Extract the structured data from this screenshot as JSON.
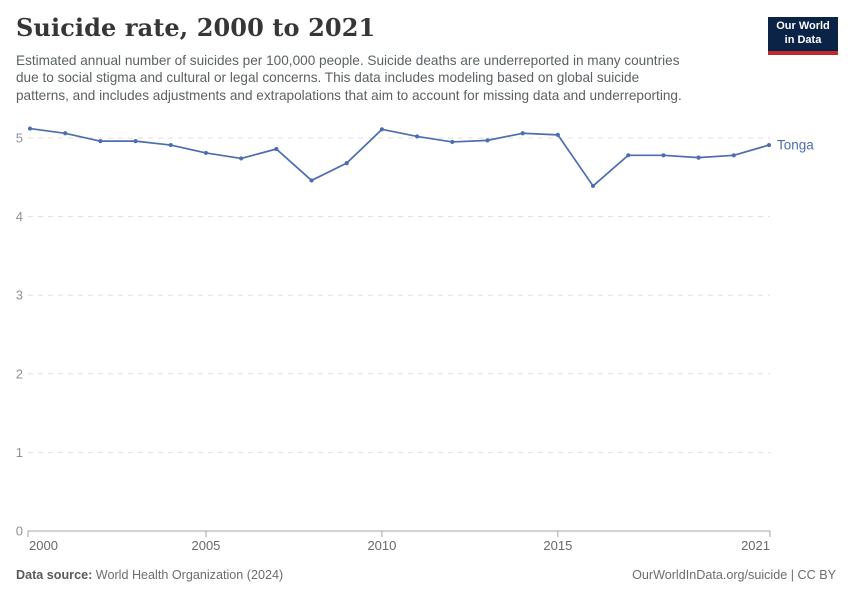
{
  "colors": {
    "line": "#4C6DB0",
    "logo_bg": "#0A2346",
    "logo_accent": "#C0292E",
    "gridline": "#dfdfdf",
    "axis": "#a1a6aa",
    "y_tick_label": "#8e9398",
    "x_tick_label": "#67696c"
  },
  "header": {
    "title": "Suicide rate, 2000 to 2021",
    "subtitle_lines": [
      "Estimated annual number of suicides per 100,000 people. Suicide deaths are underreported in many countries",
      "due to social stigma and cultural or legal concerns. This data includes modeling based on global suicide",
      "patterns, and includes adjustments and extrapolations that aim to account for missing data and underreporting."
    ],
    "logo": {
      "line1": "Our World",
      "line2": "in Data"
    }
  },
  "chart_data": {
    "type": "line",
    "title": "Suicide rate, 2000 to 2021",
    "x": [
      2000,
      2001,
      2002,
      2003,
      2004,
      2005,
      2006,
      2007,
      2008,
      2009,
      2010,
      2011,
      2012,
      2013,
      2014,
      2015,
      2016,
      2017,
      2018,
      2019,
      2020,
      2021
    ],
    "series": [
      {
        "name": "Tonga",
        "color": "#4C6DB0",
        "values": [
          5.12,
          5.06,
          4.96,
          4.96,
          4.91,
          4.81,
          4.74,
          4.86,
          4.46,
          4.68,
          5.11,
          5.02,
          4.95,
          4.97,
          5.06,
          5.04,
          4.39,
          4.78,
          4.78,
          4.75,
          4.78,
          4.91
        ]
      }
    ],
    "x_ticks": [
      2000,
      2005,
      2010,
      2015,
      2021
    ],
    "y_ticks": [
      0,
      1,
      2,
      3,
      4,
      5
    ],
    "xlim": [
      2000,
      2021
    ],
    "ylim": [
      0,
      5.5
    ],
    "xlabel": "",
    "ylabel": "",
    "grid": "horizontal-dashed",
    "legend": "line-end-label"
  },
  "footer": {
    "source_label": "Data source:",
    "source_value": "World Health Organization (2024)",
    "credit": "OurWorldInData.org/suicide | CC BY"
  }
}
